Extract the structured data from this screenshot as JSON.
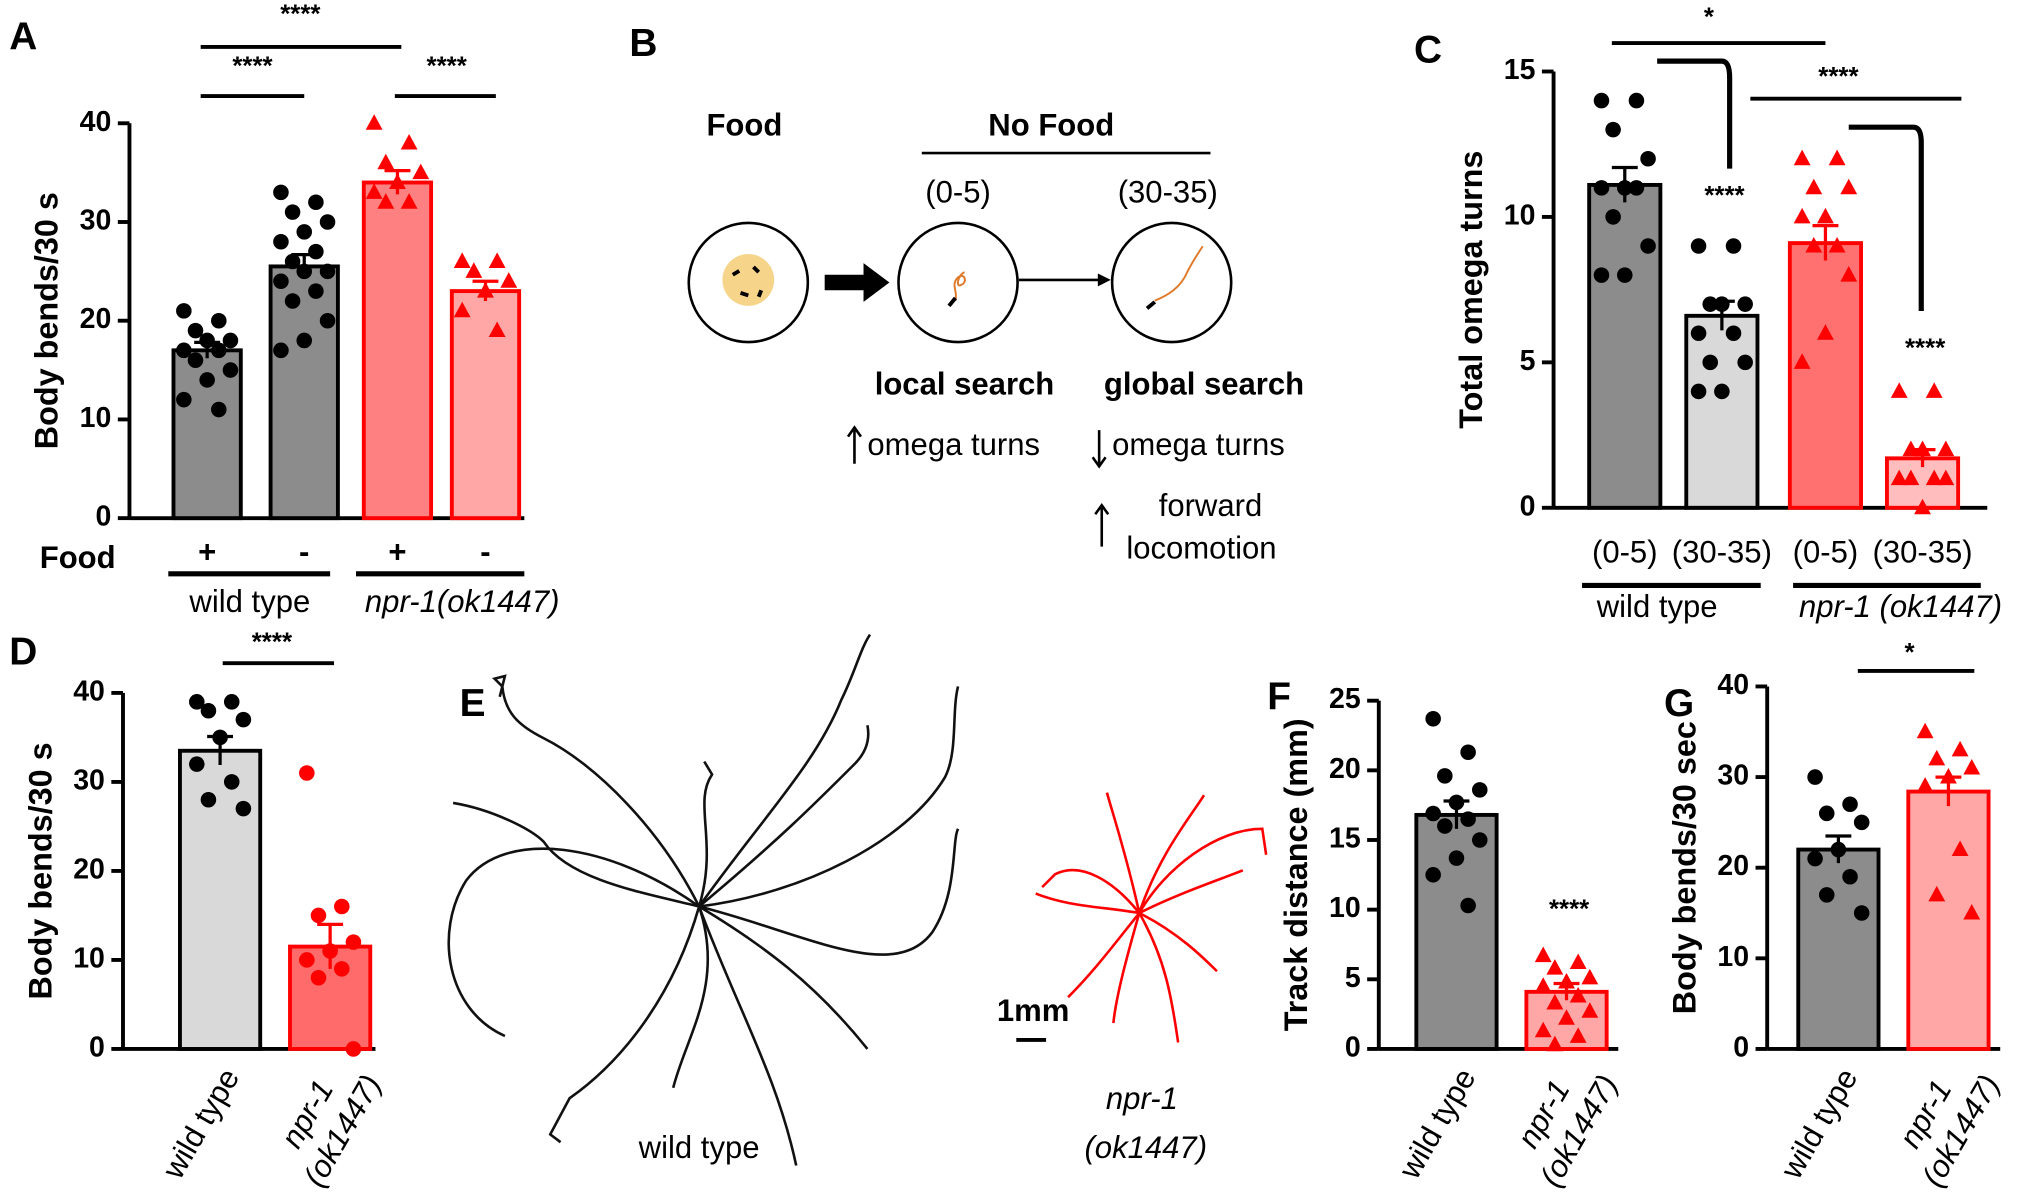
{
  "chart_data": [
    {
      "type": "bar",
      "panel": "A",
      "ylabel": "Body bends/30 s",
      "row_label": "Food",
      "categories": [
        "+",
        "-",
        "+",
        "-"
      ],
      "groups": [
        "wild type",
        "npr-1(ok1447)"
      ],
      "values": [
        17,
        25.5,
        34,
        23
      ],
      "errors": [
        0.8,
        1.2,
        1.2,
        1.0
      ],
      "points": [
        [
          21,
          20,
          19,
          18,
          18,
          17,
          17,
          16,
          15,
          14,
          12,
          11
        ],
        [
          33,
          32,
          31,
          30,
          29,
          28,
          27,
          26,
          25,
          25,
          24,
          23,
          22,
          20,
          18,
          17
        ],
        [
          40,
          38,
          36,
          35,
          34,
          33,
          32,
          32
        ],
        [
          26,
          26,
          25,
          24,
          23,
          21,
          19
        ]
      ],
      "colors": [
        "#8c8c8c",
        "#8c8c8c",
        "#ff8080",
        "#ffa6a6"
      ],
      "edge_colors": [
        "#000000",
        "#000000",
        "#ff0000",
        "#ff0000"
      ],
      "markers": [
        "circle",
        "circle",
        "triangle",
        "triangle"
      ],
      "marker_colors": [
        "#000000",
        "#000000",
        "#ff0000",
        "#ff0000"
      ],
      "significance": [
        "****",
        "****",
        "****"
      ],
      "ylim": [
        0,
        40
      ],
      "yticks": [
        0,
        10,
        20,
        30,
        40
      ]
    },
    {
      "type": "bar",
      "panel": "C",
      "ylabel": "Total omega turns",
      "categories": [
        "(0-5)",
        "(30-35)",
        "(0-5)",
        "(30-35)"
      ],
      "groups": [
        "wild type",
        "npr-1 (ok1447)"
      ],
      "values": [
        11.1,
        6.6,
        9.1,
        1.7
      ],
      "errors": [
        0.6,
        0.5,
        0.6,
        0.3
      ],
      "points": [
        [
          14,
          14,
          13,
          12,
          11,
          11,
          11,
          10,
          9,
          8,
          8
        ],
        [
          9,
          9,
          7,
          7,
          7,
          6,
          6,
          5,
          5,
          4,
          4
        ],
        [
          12,
          12,
          11,
          11,
          10,
          10,
          9,
          9,
          8,
          6,
          5
        ],
        [
          4,
          4,
          2,
          2,
          2,
          1,
          1,
          1,
          1,
          0
        ]
      ],
      "colors": [
        "#8c8c8c",
        "#d9d9d9",
        "#ff7070",
        "#ffbdbd"
      ],
      "edge_colors": [
        "#000000",
        "#000000",
        "#ff0000",
        "#ff0000"
      ],
      "markers": [
        "circle",
        "circle",
        "triangle",
        "triangle"
      ],
      "marker_colors": [
        "#000000",
        "#000000",
        "#ff0000",
        "#ff0000"
      ],
      "significance": [
        "*",
        "****",
        "****",
        "****"
      ],
      "ylim": [
        0,
        15
      ],
      "yticks": [
        0,
        5,
        10,
        15
      ]
    },
    {
      "type": "bar",
      "panel": "D",
      "ylabel": "Body bends/30 s",
      "categories": [
        "wild type",
        "npr-1 (ok1447)"
      ],
      "values": [
        33.5,
        11.5
      ],
      "errors": [
        1.6,
        2.5
      ],
      "points": [
        [
          39,
          39,
          38,
          37,
          35,
          32,
          30,
          28,
          27
        ],
        [
          31,
          16,
          15,
          12,
          11,
          10,
          9,
          8,
          0
        ]
      ],
      "colors": [
        "#d9d9d9",
        "#ff6b6b"
      ],
      "edge_colors": [
        "#000000",
        "#ff0000"
      ],
      "markers": [
        "circle",
        "circle"
      ],
      "marker_colors": [
        "#000000",
        "#ff0000"
      ],
      "significance": [
        "****"
      ],
      "ylim": [
        0,
        40
      ],
      "yticks": [
        0,
        10,
        20,
        30,
        40
      ]
    },
    {
      "type": "bar",
      "panel": "F",
      "ylabel": "Track distance (mm)",
      "categories": [
        "wild type",
        "npr-1 (ok1447)"
      ],
      "values": [
        16.8,
        4.1
      ],
      "errors": [
        1.0,
        0.6
      ],
      "points": [
        [
          23.7,
          21.3,
          19.6,
          18.6,
          17.7,
          16.9,
          16.5,
          16,
          15,
          13.7,
          12.5,
          10.3
        ],
        [
          6.7,
          6.2,
          5.8,
          5.1,
          4.8,
          4.5,
          3.8,
          3.3,
          2.7,
          2.2,
          1.3,
          0.9,
          0.3
        ]
      ],
      "colors": [
        "#8c8c8c",
        "#ffa6a6"
      ],
      "edge_colors": [
        "#000000",
        "#ff0000"
      ],
      "markers": [
        "circle",
        "triangle"
      ],
      "marker_colors": [
        "#000000",
        "#ff0000"
      ],
      "significance": [
        "****"
      ],
      "ylim": [
        0,
        25
      ],
      "yticks": [
        0,
        5,
        10,
        15,
        20,
        25
      ]
    },
    {
      "type": "bar",
      "panel": "G",
      "ylabel": "Body bends/30 sec",
      "categories": [
        "wild type",
        "npr-1 (ok1447)"
      ],
      "values": [
        22,
        28.4
      ],
      "errors": [
        1.5,
        1.6
      ],
      "points": [
        [
          30,
          27,
          26,
          25,
          22,
          21,
          19,
          17,
          15
        ],
        [
          35,
          33,
          32,
          31,
          30,
          29,
          22,
          17,
          15
        ]
      ],
      "colors": [
        "#8c8c8c",
        "#ffa6a6"
      ],
      "edge_colors": [
        "#000000",
        "#ff0000"
      ],
      "markers": [
        "circle",
        "triangle"
      ],
      "marker_colors": [
        "#000000",
        "#ff0000"
      ],
      "significance": [
        "*"
      ],
      "ylim": [
        0,
        40
      ],
      "yticks": [
        0,
        10,
        20,
        30,
        40
      ]
    }
  ],
  "diagram": {
    "panel": "B",
    "food": "Food",
    "no_food": "No Food",
    "times": [
      "(0-5)",
      "(30-35)"
    ],
    "searches": [
      "local search",
      "global search"
    ],
    "effects": [
      "omega turns",
      "omega turns"
    ],
    "forward": [
      "forward",
      "locomotion"
    ]
  },
  "tracks": {
    "panel": "E",
    "scale": "1mm",
    "labels": [
      "wild type",
      "npr-1",
      "(ok1447)"
    ]
  }
}
